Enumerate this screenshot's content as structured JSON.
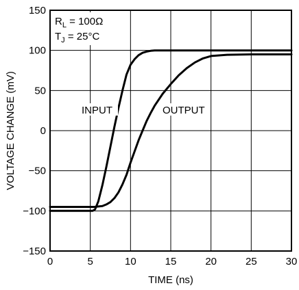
{
  "chart_data": {
    "type": "line",
    "xlabel": "TIME (ns)",
    "ylabel": "VOLTAGE CHANGE (mV)",
    "xlim": [
      0,
      30
    ],
    "ylim": [
      -150,
      150
    ],
    "xticks": [
      "0",
      "5",
      "10",
      "15",
      "20",
      "25",
      "30"
    ],
    "yticks": [
      "150",
      "100",
      "50",
      "0",
      "−50",
      "−100",
      "−150"
    ],
    "grid": true,
    "conditions": {
      "rl_prefix": "R",
      "rl_sub": "L",
      "rl_value": " = 100Ω",
      "tj_prefix": "T",
      "tj_sub": "J",
      "tj_value": " = 25°C"
    },
    "series": [
      {
        "name": "INPUT",
        "x": [
          0,
          5.3,
          5.6,
          6,
          6.5,
          7,
          7.5,
          8,
          8.5,
          9,
          9.5,
          10,
          10.5,
          11,
          11.5,
          12,
          12.5,
          13,
          14,
          16,
          20,
          30
        ],
        "y": [
          -100,
          -100,
          -98,
          -88,
          -68,
          -45,
          -20,
          5,
          28,
          50,
          70,
          82,
          89,
          94,
          97,
          98.5,
          99.5,
          100,
          100,
          100,
          100,
          100
        ]
      },
      {
        "name": "OUTPUT",
        "x": [
          0,
          5.5,
          6,
          6.5,
          7,
          7.5,
          8,
          8.5,
          9,
          9.5,
          10,
          10.5,
          11,
          11.5,
          12,
          12.5,
          13,
          14,
          15,
          16,
          17,
          18,
          19,
          20,
          22,
          25,
          30
        ],
        "y": [
          -95,
          -95,
          -94.5,
          -94,
          -92,
          -89,
          -84,
          -77,
          -67,
          -55,
          -40,
          -26,
          -12,
          0,
          12,
          22,
          31,
          46,
          58,
          69,
          78,
          85,
          90,
          93,
          94.5,
          95,
          95
        ]
      }
    ]
  }
}
